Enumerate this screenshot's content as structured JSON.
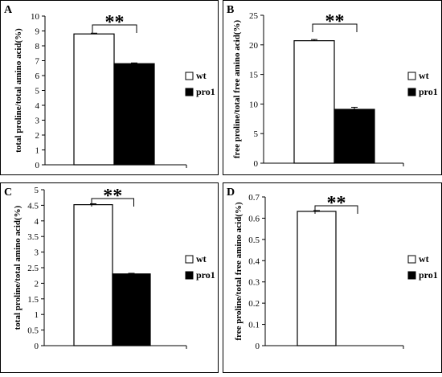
{
  "chart_data": [
    {
      "panel": "A",
      "type": "bar",
      "categories": [
        "wt",
        "pro1"
      ],
      "values": [
        8.8,
        6.8
      ],
      "errors": [
        0.05,
        0.05
      ],
      "ylabel": "total proline/total amino acid(%)",
      "ylim": [
        0,
        10
      ],
      "yticks": [
        0,
        1,
        2,
        3,
        4,
        5,
        6,
        7,
        8,
        9,
        10
      ],
      "legend": [
        "wt",
        "pro1"
      ],
      "legend_position": "right",
      "annotation": "**",
      "bar_colors": [
        "#ffffff",
        "#000000"
      ]
    },
    {
      "panel": "B",
      "type": "bar",
      "categories": [
        "wt",
        "pro1"
      ],
      "values": [
        20.7,
        9.1
      ],
      "errors": [
        0.2,
        0.35
      ],
      "ylabel": "free proline/total free amino acid(%)",
      "ylim": [
        0,
        25
      ],
      "yticks": [
        0,
        5,
        10,
        15,
        20,
        25
      ],
      "legend": [
        "wt",
        "pro1"
      ],
      "legend_position": "right",
      "annotation": "**",
      "bar_colors": [
        "#ffffff",
        "#000000"
      ]
    },
    {
      "panel": "C",
      "type": "bar",
      "categories": [
        "wt",
        "pro1"
      ],
      "values": [
        4.52,
        2.3
      ],
      "errors": [
        0.03,
        0.02
      ],
      "ylabel": "total proline/total amino acid(%)",
      "ylim": [
        0,
        5
      ],
      "yticks": [
        "0",
        "0.5",
        "1",
        "1.5",
        "2",
        "2.5",
        "3",
        "3.5",
        "4",
        "4.5",
        "5"
      ],
      "legend": [
        "wt",
        "pro1"
      ],
      "legend_position": "right",
      "annotation": "**",
      "bar_colors": [
        "#ffffff",
        "#000000"
      ]
    },
    {
      "panel": "D",
      "type": "bar",
      "categories": [
        "wt",
        "pro1"
      ],
      "values": [
        0.632,
        0
      ],
      "errors": [
        0.004,
        0
      ],
      "ylabel": "free proline/total free amino acid(%)",
      "ylim": [
        0,
        0.7
      ],
      "yticks": [
        "0",
        "0.1",
        "0.2",
        "0.3",
        "0.4",
        "0.5",
        "0.6",
        "0.7"
      ],
      "legend": [
        "wt",
        "pro1"
      ],
      "legend_position": "right",
      "annotation": "**",
      "bar_colors": [
        "#ffffff",
        "#000000"
      ]
    }
  ]
}
